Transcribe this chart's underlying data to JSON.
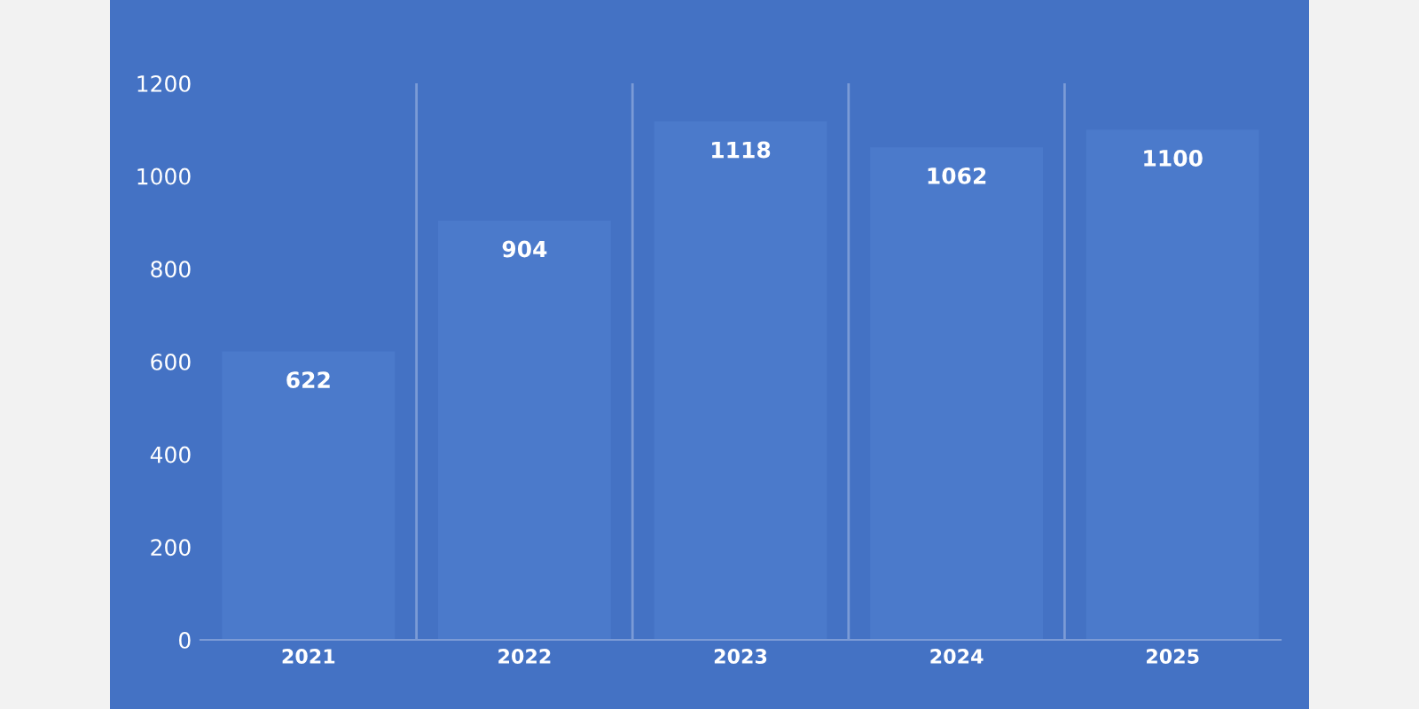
{
  "chart_data": {
    "type": "bar",
    "categories": [
      "2021",
      "2022",
      "2023",
      "2024",
      "2025"
    ],
    "values": [
      622,
      904,
      1118,
      1062,
      1100
    ],
    "color": "#4b7acb",
    "ylim": [
      0,
      1200
    ],
    "yticks": [
      0,
      200,
      400,
      600,
      800,
      1000,
      1200
    ],
    "grid": "x",
    "data_labels": true
  }
}
